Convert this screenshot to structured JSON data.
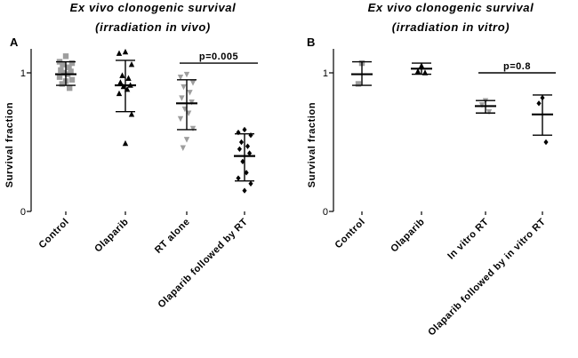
{
  "chart_data": [
    {
      "type": "scatter",
      "panel_label": "A",
      "title_parts": [
        {
          "text": "Ex  vivo clonogenic survival",
          "italic": true
        },
        {
          "text": "(irradiation ",
          "italic": true
        },
        {
          "text": "in vivo",
          "italic": true
        },
        {
          "text": ")",
          "italic": true
        }
      ],
      "ylabel": "Survival fraction",
      "ylim": [
        0,
        1.1
      ],
      "yticks": [
        0,
        1
      ],
      "categories": [
        "Control",
        "Olaparib",
        "RT alone",
        "Olaparib followed by RT"
      ],
      "groups": [
        {
          "name": "Control",
          "marker": "square",
          "color": "#9e9e9e",
          "mean": 0.99,
          "sd_low": 0.91,
          "sd_high": 1.08,
          "points": [
            1.12,
            1.08,
            1.07,
            1.06,
            1.04,
            1.02,
            1.01,
            1.0,
            0.99,
            0.97,
            0.95,
            0.94,
            0.92,
            0.89
          ]
        },
        {
          "name": "Olaparib",
          "marker": "triangle-up",
          "color": "#000000",
          "mean": 0.91,
          "sd_low": 0.72,
          "sd_high": 1.09,
          "points": [
            1.15,
            1.14,
            1.06,
            0.98,
            0.96,
            0.93,
            0.91,
            0.9,
            0.88,
            0.85,
            0.7,
            0.49
          ]
        },
        {
          "name": "RT alone",
          "marker": "triangle-down",
          "color": "#9e9e9e",
          "mean": 0.78,
          "sd_low": 0.59,
          "sd_high": 0.95,
          "points": [
            0.99,
            0.97,
            0.93,
            0.9,
            0.86,
            0.82,
            0.79,
            0.74,
            0.71,
            0.67,
            0.6,
            0.52,
            0.46
          ]
        },
        {
          "name": "Olaparib followed by RT",
          "marker": "diamond",
          "color": "#000000",
          "mean": 0.4,
          "sd_low": 0.22,
          "sd_high": 0.56,
          "points": [
            0.59,
            0.57,
            0.55,
            0.5,
            0.47,
            0.45,
            0.42,
            0.36,
            0.28,
            0.24,
            0.2,
            0.15
          ]
        }
      ],
      "significance": {
        "from": 2,
        "to": 3,
        "label": "p=0.005",
        "y": 1.07
      }
    },
    {
      "type": "scatter",
      "panel_label": "B",
      "title_parts": [
        {
          "text": "Ex vivo clonogenic survival",
          "italic": true
        },
        {
          "text": "(irradiation ",
          "italic": true
        },
        {
          "text": "in vitro",
          "italic": true
        },
        {
          "text": ")",
          "italic": true
        }
      ],
      "ylabel": "Survival fraction",
      "ylim": [
        0,
        1.1
      ],
      "yticks": [
        0,
        1
      ],
      "categories": [
        "Control",
        "Olaparib",
        "In vitro RT",
        "Olaparib followed by in vitro RT"
      ],
      "groups": [
        {
          "name": "Control",
          "marker": "square",
          "color": "#9e9e9e",
          "mean": 0.99,
          "sd_low": 0.91,
          "sd_high": 1.08,
          "points": [
            1.07,
            0.92
          ]
        },
        {
          "name": "Olaparib",
          "marker": "triangle-up",
          "color": "#000000",
          "mean": 1.03,
          "sd_low": 0.99,
          "sd_high": 1.07,
          "points": [
            1.05,
            1.01,
            1.0
          ]
        },
        {
          "name": "In vitro RT",
          "marker": "triangle-down",
          "color": "#9e9e9e",
          "mean": 0.76,
          "sd_low": 0.71,
          "sd_high": 0.8,
          "points": [
            0.8,
            0.77,
            0.72
          ]
        },
        {
          "name": "Olaparib followed by in vitro RT",
          "marker": "diamond",
          "color": "#000000",
          "mean": 0.7,
          "sd_low": 0.55,
          "sd_high": 0.84,
          "points": [
            0.82,
            0.78,
            0.5
          ]
        }
      ],
      "significance": {
        "from": 2,
        "to": 3,
        "label": "p=0.8",
        "y": 1.0
      }
    }
  ]
}
